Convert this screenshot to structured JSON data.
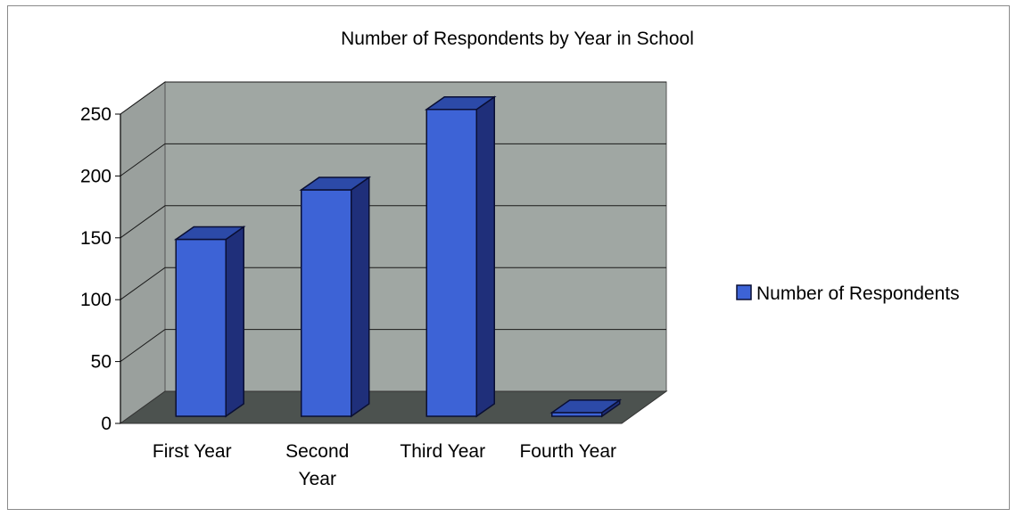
{
  "chart_data": {
    "type": "bar",
    "title": "Number of Respondents by Year in School",
    "categories": [
      "First Year",
      "Second Year",
      "Third Year",
      "Fourth Year"
    ],
    "series": [
      {
        "name": "Number of Respondents",
        "values": [
          143,
          183,
          248,
          3
        ]
      }
    ],
    "ylim": [
      0,
      250
    ],
    "yticks": [
      0,
      50,
      100,
      150,
      200,
      250
    ],
    "grid": true,
    "three_d": true,
    "legend_position": "right",
    "colors": {
      "bar_front": "#3d63d6",
      "bar_side": "#1f2f7a",
      "bar_top": "#2c4aa8",
      "bar_outline": "#0a0f33",
      "wall_back": "#a0a7a3",
      "wall_side": "#9aa09d",
      "floor": "#4c524f",
      "gridline": "#1a1a1a"
    }
  }
}
